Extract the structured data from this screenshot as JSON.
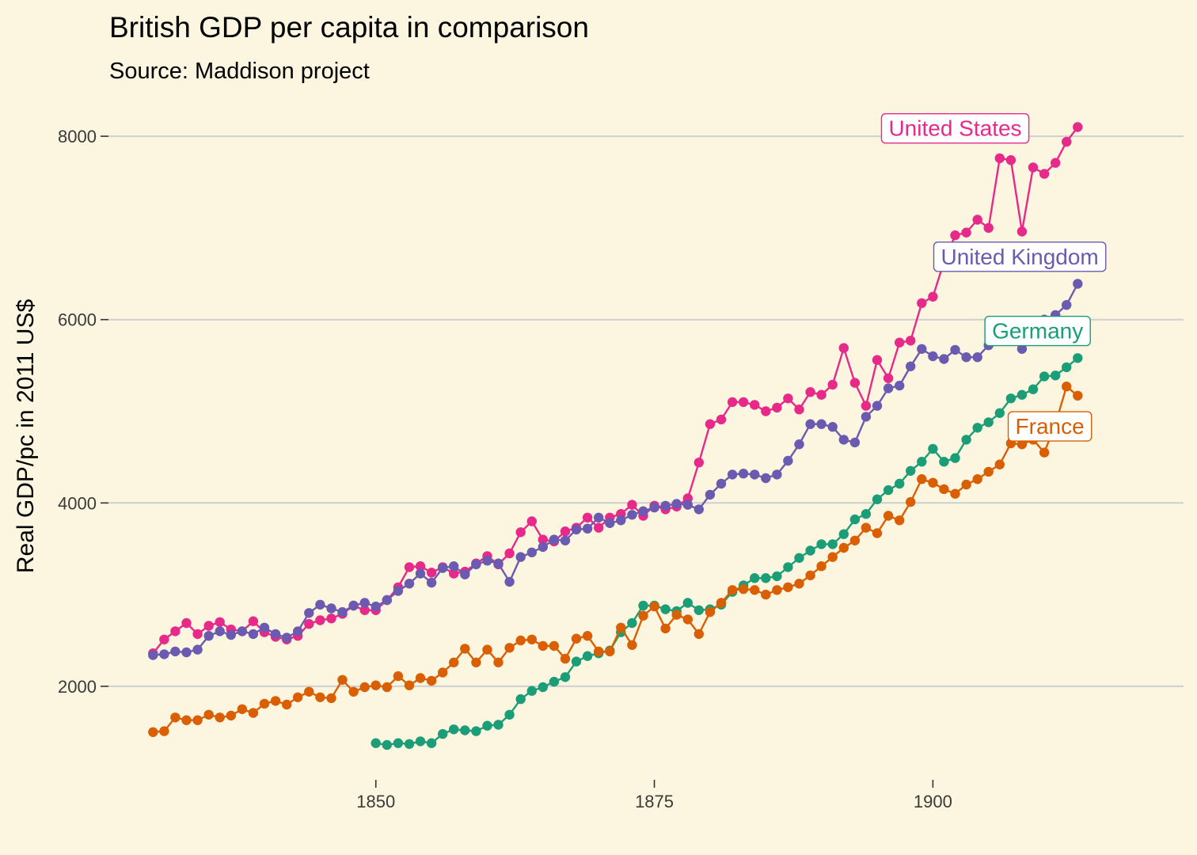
{
  "chart_data": {
    "type": "line",
    "title": "British GDP per capita in comparison",
    "subtitle": "Source: Maddison project",
    "xlabel": "",
    "ylabel": "Real GDP/pc in 2011 US$",
    "xlim": [
      1826,
      1922.5
    ],
    "ylim": [
      980,
      8450
    ],
    "x_ticks": [
      1850,
      1875,
      1900
    ],
    "y_ticks": [
      2000,
      4000,
      6000,
      8000
    ],
    "grid": "horizontal",
    "legend": "direct-labels",
    "series": [
      {
        "name": "United States",
        "color": "#e7298a",
        "start_year": 1830,
        "values": [
          2360,
          2510,
          2600,
          2690,
          2570,
          2660,
          2700,
          2620,
          2600,
          2710,
          2590,
          2540,
          2510,
          2550,
          2680,
          2720,
          2740,
          2790,
          2880,
          2830,
          2830,
          2940,
          3080,
          3300,
          3310,
          3240,
          3300,
          3230,
          3250,
          3340,
          3420,
          3330,
          3450,
          3680,
          3800,
          3600,
          3580,
          3690,
          3730,
          3840,
          3730,
          3840,
          3880,
          3980,
          3860,
          3970,
          3930,
          3960,
          4050,
          4440,
          4860,
          4910,
          5100,
          5100,
          5070,
          5000,
          5040,
          5140,
          5020,
          5210,
          5180,
          5290,
          5690,
          5310,
          5060,
          5560,
          5360,
          5750,
          5770,
          6180,
          6250,
          6630,
          6920,
          6950,
          7090,
          7000,
          7760,
          7740,
          6960,
          7660,
          7590,
          7710,
          7940,
          8100
        ]
      },
      {
        "name": "United Kingdom",
        "color": "#6a5ab0",
        "start_year": 1830,
        "values": [
          2340,
          2350,
          2380,
          2370,
          2400,
          2550,
          2600,
          2560,
          2600,
          2570,
          2640,
          2570,
          2530,
          2600,
          2800,
          2890,
          2850,
          2810,
          2880,
          2910,
          2870,
          2940,
          3040,
          3120,
          3230,
          3130,
          3290,
          3310,
          3220,
          3330,
          3370,
          3340,
          3140,
          3410,
          3460,
          3520,
          3600,
          3590,
          3710,
          3720,
          3840,
          3780,
          3810,
          3870,
          3910,
          3950,
          3970,
          3990,
          3980,
          3930,
          4090,
          4210,
          4310,
          4320,
          4310,
          4270,
          4310,
          4460,
          4640,
          4860,
          4860,
          4830,
          4690,
          4660,
          4940,
          5060,
          5250,
          5280,
          5490,
          5680,
          5600,
          5570,
          5670,
          5590,
          5590,
          5720,
          5800,
          5840,
          5680,
          5910,
          6000,
          6050,
          6160,
          6390
        ]
      },
      {
        "name": "Germany",
        "color": "#1b9e77",
        "start_year": 1850,
        "values": [
          1380,
          1360,
          1380,
          1370,
          1400,
          1380,
          1480,
          1530,
          1520,
          1510,
          1570,
          1580,
          1690,
          1860,
          1950,
          1990,
          2050,
          2100,
          2270,
          2330,
          2360,
          2390,
          2590,
          2690,
          2880,
          2880,
          2840,
          2820,
          2910,
          2830,
          2840,
          2890,
          3030,
          3100,
          3180,
          3180,
          3200,
          3300,
          3400,
          3480,
          3550,
          3550,
          3660,
          3820,
          3880,
          4040,
          4140,
          4210,
          4350,
          4450,
          4590,
          4450,
          4490,
          4690,
          4820,
          4880,
          4980,
          5140,
          5180,
          5240,
          5380,
          5390,
          5480,
          5580
        ]
      },
      {
        "name": "France",
        "color": "#d95f02",
        "start_year": 1830,
        "values": [
          1500,
          1510,
          1660,
          1630,
          1630,
          1690,
          1660,
          1680,
          1750,
          1710,
          1810,
          1840,
          1800,
          1880,
          1940,
          1880,
          1870,
          2070,
          1940,
          1990,
          2010,
          1990,
          2110,
          2010,
          2090,
          2060,
          2150,
          2260,
          2410,
          2260,
          2400,
          2260,
          2420,
          2500,
          2510,
          2440,
          2440,
          2300,
          2520,
          2550,
          2380,
          2380,
          2640,
          2450,
          2770,
          2870,
          2630,
          2780,
          2730,
          2570,
          2810,
          2910,
          3050,
          3060,
          3050,
          3000,
          3050,
          3080,
          3120,
          3210,
          3310,
          3410,
          3510,
          3590,
          3730,
          3670,
          3860,
          3810,
          4010,
          4260,
          4220,
          4150,
          4100,
          4200,
          4260,
          4340,
          4420,
          4650,
          4640,
          4690,
          4550,
          4860,
          5270,
          5170
        ]
      }
    ],
    "annotations": [
      {
        "text": "United States",
        "x": 1902,
        "y": 8090
      },
      {
        "text": "United Kingdom",
        "x": 1907.8,
        "y": 6690
      },
      {
        "text": "Germany",
        "x": 1909.4,
        "y": 5880
      },
      {
        "text": "France",
        "x": 1910.5,
        "y": 4840
      }
    ]
  }
}
